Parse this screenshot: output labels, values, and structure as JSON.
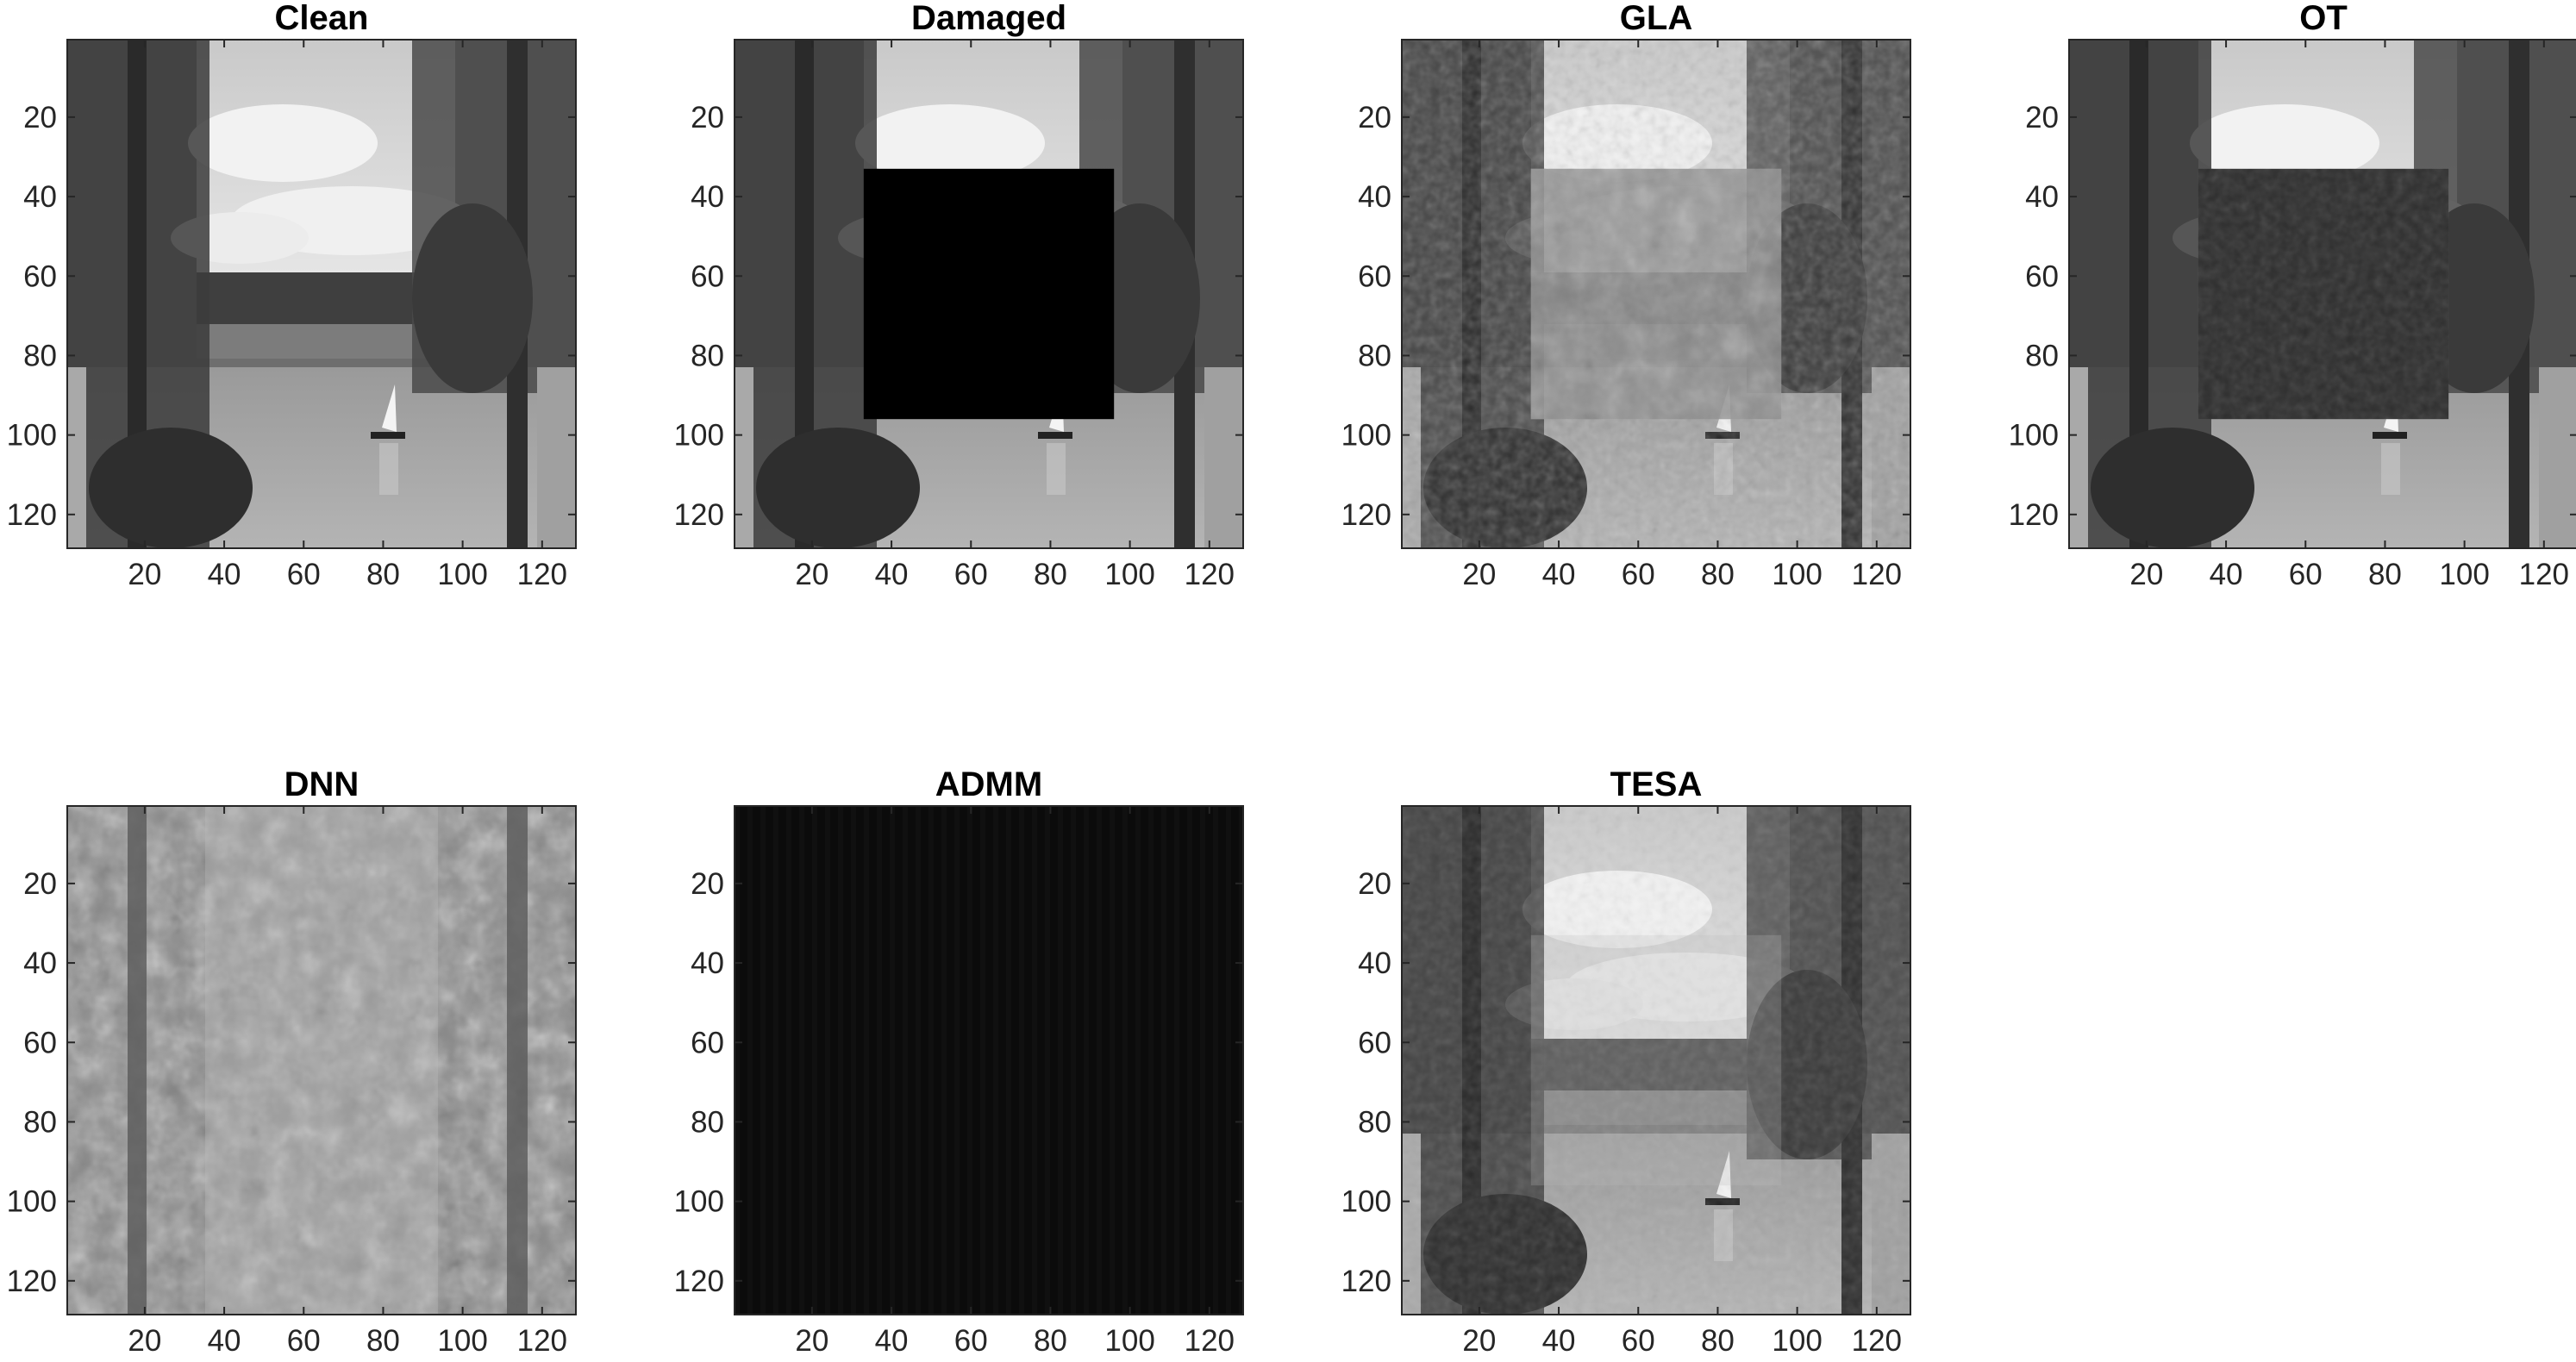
{
  "figure": {
    "panels": [
      {
        "title": "Clean",
        "style": "clean"
      },
      {
        "title": "Damaged",
        "style": "damaged"
      },
      {
        "title": "GLA",
        "style": "gla"
      },
      {
        "title": "OT",
        "style": "ot"
      },
      {
        "title": "DNN",
        "style": "dnn"
      },
      {
        "title": "ADMM",
        "style": "admm"
      },
      {
        "title": "TESA",
        "style": "tesa"
      }
    ],
    "xticks": [
      "20",
      "40",
      "60",
      "80",
      "100",
      "120"
    ],
    "yticks": [
      "20",
      "40",
      "60",
      "80",
      "100",
      "120"
    ],
    "tick_values": [
      20,
      40,
      60,
      80,
      100,
      120
    ],
    "axis_range": [
      0.5,
      128.5
    ],
    "colormap": "gray"
  }
}
